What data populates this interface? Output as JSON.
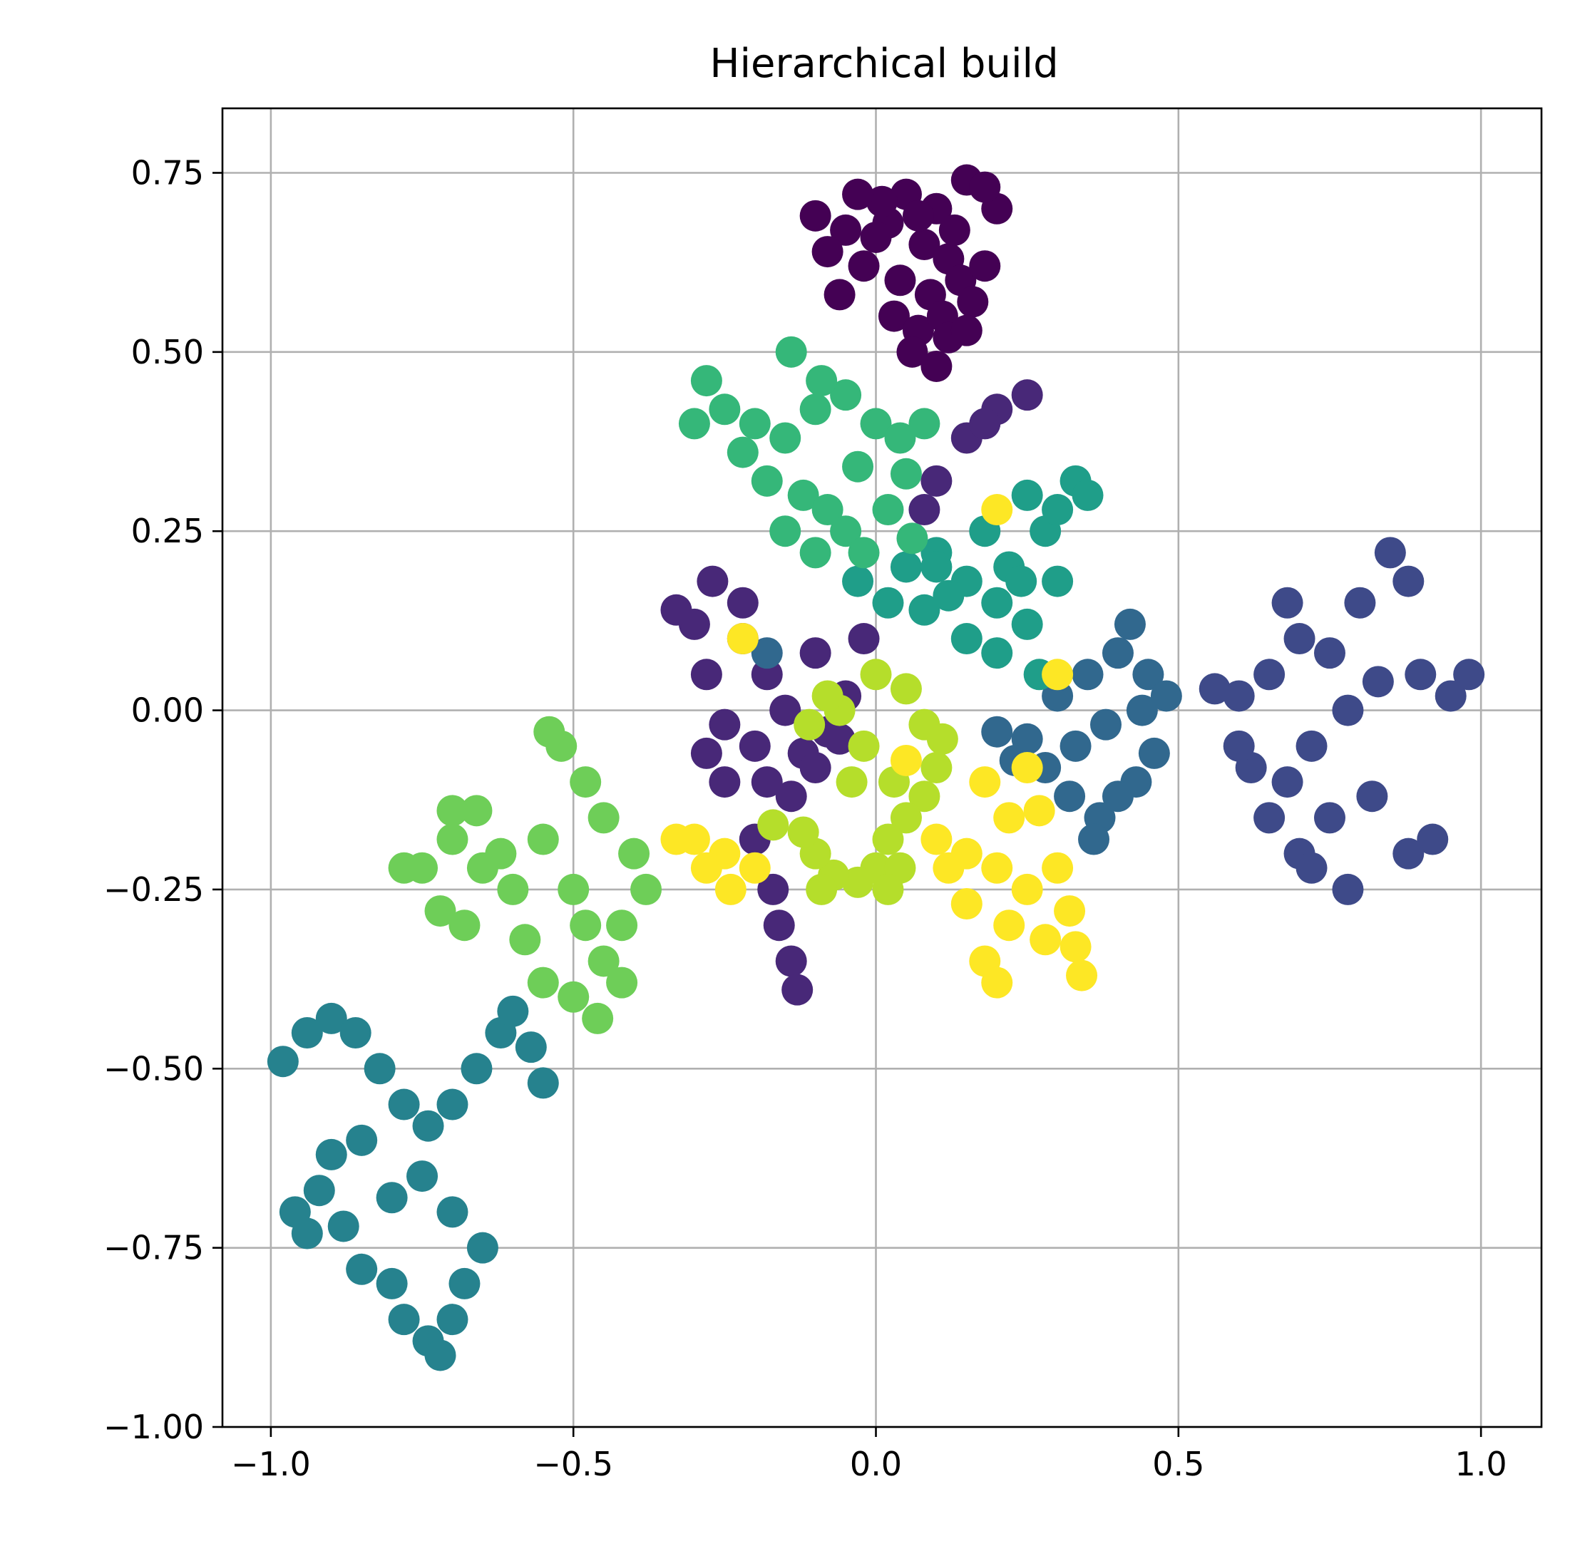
{
  "chart_data": {
    "type": "scatter",
    "title": "Hierarchical build",
    "xlabel": "",
    "ylabel": "",
    "xlim": [
      -1.08,
      1.1
    ],
    "ylim": [
      -1.0,
      0.84
    ],
    "xticks": [
      -1.0,
      -0.5,
      0.0,
      0.5,
      1.0
    ],
    "xtick_labels": [
      "−1.0",
      "−0.5",
      "0.0",
      "0.5",
      "1.0"
    ],
    "yticks": [
      -1.0,
      -0.75,
      -0.5,
      -0.25,
      0.0,
      0.25,
      0.5,
      0.75
    ],
    "ytick_labels": [
      "−1.00",
      "−0.75",
      "−0.50",
      "−0.25",
      "0.00",
      "0.25",
      "0.50",
      "0.75"
    ],
    "grid": true,
    "legend": "none",
    "colormap": "viridis",
    "clusters": [
      {
        "color": "#440154",
        "points": [
          [
            0.05,
            0.72
          ],
          [
            0.1,
            0.7
          ],
          [
            0.15,
            0.74
          ],
          [
            0.02,
            0.68
          ],
          [
            0.08,
            0.65
          ],
          [
            0.12,
            0.63
          ],
          [
            0.0,
            0.66
          ],
          [
            0.04,
            0.6
          ],
          [
            0.09,
            0.58
          ],
          [
            0.14,
            0.6
          ],
          [
            0.18,
            0.62
          ],
          [
            0.03,
            0.55
          ],
          [
            0.07,
            0.53
          ],
          [
            0.11,
            0.55
          ],
          [
            0.16,
            0.57
          ],
          [
            -0.02,
            0.62
          ],
          [
            -0.05,
            0.67
          ],
          [
            -0.08,
            0.64
          ],
          [
            -0.1,
            0.69
          ],
          [
            -0.06,
            0.58
          ],
          [
            0.06,
            0.5
          ],
          [
            0.1,
            0.48
          ],
          [
            0.2,
            0.7
          ],
          [
            0.18,
            0.73
          ],
          [
            0.13,
            0.67
          ],
          [
            0.01,
            0.71
          ],
          [
            -0.03,
            0.72
          ],
          [
            0.07,
            0.69
          ],
          [
            0.12,
            0.52
          ],
          [
            0.15,
            0.53
          ]
        ]
      },
      {
        "color": "#482878",
        "points": [
          [
            -0.22,
            0.1
          ],
          [
            -0.18,
            0.05
          ],
          [
            -0.15,
            0.0
          ],
          [
            -0.25,
            -0.02
          ],
          [
            -0.2,
            -0.05
          ],
          [
            -0.12,
            -0.06
          ],
          [
            -0.08,
            -0.03
          ],
          [
            -0.05,
            0.02
          ],
          [
            -0.1,
            0.08
          ],
          [
            -0.28,
            0.05
          ],
          [
            -0.3,
            0.12
          ],
          [
            -0.33,
            0.14
          ],
          [
            -0.27,
            0.18
          ],
          [
            -0.22,
            0.15
          ],
          [
            -0.18,
            -0.1
          ],
          [
            -0.14,
            -0.12
          ],
          [
            -0.1,
            -0.08
          ],
          [
            -0.2,
            -0.18
          ],
          [
            -0.17,
            -0.25
          ],
          [
            -0.16,
            -0.3
          ],
          [
            -0.14,
            -0.35
          ],
          [
            -0.13,
            -0.39
          ],
          [
            -0.25,
            -0.1
          ],
          [
            -0.28,
            -0.06
          ],
          [
            0.1,
            0.32
          ],
          [
            0.15,
            0.38
          ],
          [
            0.2,
            0.42
          ],
          [
            0.25,
            0.44
          ],
          [
            0.18,
            0.4
          ],
          [
            0.08,
            0.28
          ],
          [
            -0.02,
            0.1
          ],
          [
            -0.06,
            -0.04
          ]
        ]
      },
      {
        "color": "#3e4a89",
        "points": [
          [
            0.6,
            0.02
          ],
          [
            0.65,
            0.05
          ],
          [
            0.7,
            0.1
          ],
          [
            0.75,
            0.08
          ],
          [
            0.8,
            0.15
          ],
          [
            0.85,
            0.22
          ],
          [
            0.88,
            0.18
          ],
          [
            0.72,
            -0.05
          ],
          [
            0.68,
            -0.1
          ],
          [
            0.75,
            -0.15
          ],
          [
            0.7,
            -0.2
          ],
          [
            0.78,
            -0.25
          ],
          [
            0.72,
            -0.22
          ],
          [
            0.65,
            -0.15
          ],
          [
            0.62,
            -0.08
          ],
          [
            0.9,
            0.05
          ],
          [
            0.95,
            0.02
          ],
          [
            0.98,
            0.05
          ],
          [
            0.92,
            -0.18
          ],
          [
            0.88,
            -0.2
          ],
          [
            0.82,
            -0.12
          ],
          [
            0.6,
            -0.05
          ],
          [
            0.68,
            0.15
          ],
          [
            0.78,
            0.0
          ],
          [
            0.83,
            0.04
          ],
          [
            0.56,
            0.03
          ]
        ]
      },
      {
        "color": "#31688e",
        "points": [
          [
            0.3,
            0.02
          ],
          [
            0.35,
            0.05
          ],
          [
            0.4,
            0.08
          ],
          [
            0.42,
            0.12
          ],
          [
            0.45,
            0.05
          ],
          [
            0.38,
            -0.02
          ],
          [
            0.33,
            -0.05
          ],
          [
            0.28,
            -0.08
          ],
          [
            0.32,
            -0.12
          ],
          [
            0.37,
            -0.15
          ],
          [
            0.43,
            -0.1
          ],
          [
            0.46,
            -0.06
          ],
          [
            0.25,
            -0.04
          ],
          [
            0.2,
            -0.03
          ],
          [
            0.23,
            -0.07
          ],
          [
            0.48,
            0.02
          ],
          [
            0.36,
            -0.18
          ],
          [
            -0.18,
            0.08
          ],
          [
            0.4,
            -0.12
          ],
          [
            0.44,
            0.0
          ]
        ]
      },
      {
        "color": "#26828e",
        "points": [
          [
            -0.98,
            -0.49
          ],
          [
            -0.94,
            -0.45
          ],
          [
            -0.9,
            -0.43
          ],
          [
            -0.86,
            -0.45
          ],
          [
            -0.82,
            -0.5
          ],
          [
            -0.78,
            -0.55
          ],
          [
            -0.74,
            -0.58
          ],
          [
            -0.7,
            -0.55
          ],
          [
            -0.66,
            -0.5
          ],
          [
            -0.62,
            -0.45
          ],
          [
            -0.6,
            -0.42
          ],
          [
            -0.57,
            -0.47
          ],
          [
            -0.55,
            -0.52
          ],
          [
            -0.85,
            -0.6
          ],
          [
            -0.9,
            -0.62
          ],
          [
            -0.92,
            -0.67
          ],
          [
            -0.88,
            -0.72
          ],
          [
            -0.85,
            -0.78
          ],
          [
            -0.8,
            -0.8
          ],
          [
            -0.78,
            -0.85
          ],
          [
            -0.74,
            -0.88
          ],
          [
            -0.72,
            -0.9
          ],
          [
            -0.7,
            -0.85
          ],
          [
            -0.68,
            -0.8
          ],
          [
            -0.65,
            -0.75
          ],
          [
            -0.7,
            -0.7
          ],
          [
            -0.75,
            -0.65
          ],
          [
            -0.8,
            -0.68
          ],
          [
            -0.94,
            -0.73
          ],
          [
            -0.96,
            -0.7
          ]
        ]
      },
      {
        "color": "#1f9e89",
        "points": [
          [
            0.05,
            0.2
          ],
          [
            0.1,
            0.22
          ],
          [
            0.15,
            0.18
          ],
          [
            0.2,
            0.15
          ],
          [
            0.25,
            0.12
          ],
          [
            0.22,
            0.2
          ],
          [
            0.28,
            0.25
          ],
          [
            0.3,
            0.28
          ],
          [
            0.33,
            0.32
          ],
          [
            0.35,
            0.3
          ],
          [
            0.25,
            0.3
          ],
          [
            0.18,
            0.25
          ],
          [
            0.12,
            0.16
          ],
          [
            0.08,
            0.14
          ],
          [
            0.02,
            0.15
          ],
          [
            -0.03,
            0.18
          ],
          [
            0.15,
            0.1
          ],
          [
            0.2,
            0.08
          ],
          [
            0.27,
            0.05
          ],
          [
            0.3,
            0.18
          ],
          [
            0.24,
            0.18
          ],
          [
            0.1,
            0.2
          ]
        ]
      },
      {
        "color": "#35b779",
        "points": [
          [
            -0.25,
            0.42
          ],
          [
            -0.2,
            0.4
          ],
          [
            -0.15,
            0.38
          ],
          [
            -0.1,
            0.42
          ],
          [
            -0.05,
            0.44
          ],
          [
            0.0,
            0.4
          ],
          [
            0.04,
            0.38
          ],
          [
            0.08,
            0.4
          ],
          [
            -0.18,
            0.32
          ],
          [
            -0.12,
            0.3
          ],
          [
            -0.08,
            0.28
          ],
          [
            -0.05,
            0.25
          ],
          [
            -0.02,
            0.22
          ],
          [
            0.02,
            0.28
          ],
          [
            0.05,
            0.33
          ],
          [
            -0.15,
            0.25
          ],
          [
            -0.1,
            0.22
          ],
          [
            -0.28,
            0.46
          ],
          [
            -0.3,
            0.4
          ],
          [
            -0.14,
            0.5
          ],
          [
            -0.09,
            0.46
          ],
          [
            -0.22,
            0.36
          ],
          [
            0.06,
            0.24
          ],
          [
            -0.03,
            0.34
          ]
        ]
      },
      {
        "color": "#6ece58",
        "points": [
          [
            -0.52,
            -0.05
          ],
          [
            -0.48,
            -0.1
          ],
          [
            -0.45,
            -0.15
          ],
          [
            -0.4,
            -0.2
          ],
          [
            -0.38,
            -0.25
          ],
          [
            -0.42,
            -0.3
          ],
          [
            -0.45,
            -0.35
          ],
          [
            -0.5,
            -0.4
          ],
          [
            -0.55,
            -0.38
          ],
          [
            -0.58,
            -0.32
          ],
          [
            -0.6,
            -0.25
          ],
          [
            -0.65,
            -0.22
          ],
          [
            -0.7,
            -0.18
          ],
          [
            -0.75,
            -0.22
          ],
          [
            -0.72,
            -0.28
          ],
          [
            -0.68,
            -0.3
          ],
          [
            -0.62,
            -0.2
          ],
          [
            -0.66,
            -0.14
          ],
          [
            -0.7,
            -0.14
          ],
          [
            -0.55,
            -0.18
          ],
          [
            -0.5,
            -0.25
          ],
          [
            -0.48,
            -0.3
          ],
          [
            -0.42,
            -0.38
          ],
          [
            -0.46,
            -0.43
          ],
          [
            -0.54,
            -0.03
          ],
          [
            -0.78,
            -0.22
          ]
        ]
      },
      {
        "color": "#b5de2b",
        "points": [
          [
            0.0,
            0.05
          ],
          [
            0.05,
            0.03
          ],
          [
            0.08,
            -0.02
          ],
          [
            0.1,
            -0.08
          ],
          [
            0.08,
            -0.12
          ],
          [
            0.05,
            -0.15
          ],
          [
            0.02,
            -0.18
          ],
          [
            0.0,
            -0.22
          ],
          [
            -0.03,
            -0.24
          ],
          [
            -0.07,
            -0.23
          ],
          [
            -0.1,
            -0.2
          ],
          [
            -0.12,
            -0.17
          ],
          [
            -0.02,
            -0.05
          ],
          [
            -0.06,
            0.0
          ],
          [
            0.03,
            -0.1
          ],
          [
            0.04,
            -0.22
          ],
          [
            0.02,
            -0.25
          ],
          [
            -0.04,
            -0.1
          ],
          [
            0.11,
            -0.04
          ],
          [
            -0.08,
            0.02
          ],
          [
            -0.11,
            -0.02
          ],
          [
            -0.17,
            -0.16
          ],
          [
            -0.09,
            -0.25
          ]
        ]
      },
      {
        "color": "#fde725",
        "points": [
          [
            -0.3,
            -0.18
          ],
          [
            -0.25,
            -0.2
          ],
          [
            -0.2,
            -0.22
          ],
          [
            -0.24,
            -0.25
          ],
          [
            -0.28,
            -0.22
          ],
          [
            -0.33,
            -0.18
          ],
          [
            0.15,
            -0.2
          ],
          [
            0.2,
            -0.22
          ],
          [
            0.25,
            -0.25
          ],
          [
            0.3,
            -0.22
          ],
          [
            0.32,
            -0.28
          ],
          [
            0.28,
            -0.32
          ],
          [
            0.22,
            -0.3
          ],
          [
            0.18,
            -0.35
          ],
          [
            0.2,
            -0.38
          ],
          [
            0.33,
            -0.33
          ],
          [
            0.34,
            -0.37
          ],
          [
            0.18,
            -0.1
          ],
          [
            0.22,
            -0.15
          ],
          [
            0.25,
            -0.08
          ],
          [
            0.1,
            -0.18
          ],
          [
            0.12,
            -0.22
          ],
          [
            -0.22,
            0.1
          ],
          [
            0.2,
            0.28
          ],
          [
            0.3,
            0.05
          ],
          [
            0.05,
            -0.07
          ],
          [
            0.27,
            -0.14
          ],
          [
            0.15,
            -0.27
          ]
        ]
      }
    ]
  }
}
